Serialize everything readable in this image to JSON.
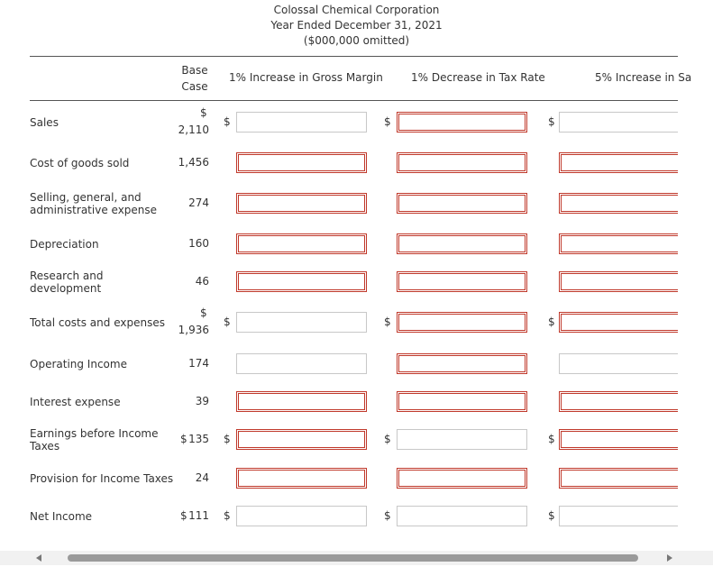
{
  "header": {
    "company": "Colossal Chemical Corporation",
    "period": "Year Ended December 31, 2021",
    "units": "($000,000 omitted)"
  },
  "table": {
    "currency": "$",
    "columns": [
      "Base Case",
      "1% Increase in Gross Margin",
      "1% Decrease in Tax Rate",
      "5% Increase in Sa"
    ],
    "rows": [
      {
        "label": "Sales",
        "base": "2,110"
      },
      {
        "label": "Cost of goods sold",
        "base": "1,456"
      },
      {
        "label": "Selling, general, and administrative expense",
        "base": "274"
      },
      {
        "label": "Depreciation",
        "base": "160"
      },
      {
        "label": "Research and development",
        "base": "46"
      },
      {
        "label": "Total costs and expenses",
        "base": "1,936"
      },
      {
        "label": "Operating Income",
        "base": "174"
      },
      {
        "label": "Interest expense",
        "base": "39"
      },
      {
        "label": "Earnings before Income Taxes",
        "base": "135"
      },
      {
        "label": "Provision for Income Taxes",
        "base": "24"
      },
      {
        "label": "Net Income",
        "base": "111"
      }
    ]
  }
}
